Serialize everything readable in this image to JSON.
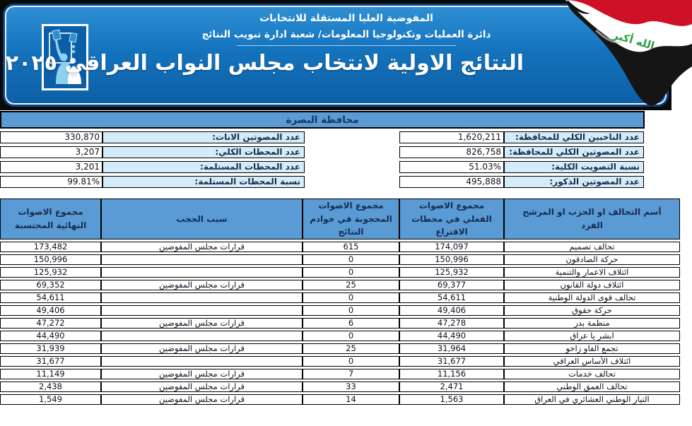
{
  "banner": {
    "org_line1": "المفوضية العليا المستقلة للانتخابات",
    "org_line2": "دائرة العمليات وتكنولوجيا المعلومات/ شعبة ادارة تبويب النتائج",
    "title": "النتائج الاولية لانتخاب مجلس النواب العراقي ٢٠٢٥",
    "flag_takbir": "الله أكبر"
  },
  "governorate": {
    "title": "محافظة البصرة"
  },
  "stats": {
    "right": [
      {
        "label": "عدد الناخبين الكلي للمحافظة:",
        "value": "1,620,211"
      },
      {
        "label": "عدد المصوتين الكلي للمحافظة:",
        "value": "826,758"
      },
      {
        "label": "نسبة التصويت الكلية:",
        "value": "51.03%"
      },
      {
        "label": "عدد المصوتين الذكور:",
        "value": "495,888"
      }
    ],
    "left": [
      {
        "label": "عدد المصوتين الاناث:",
        "value": "330,870"
      },
      {
        "label": "عدد المحطات الكلي:",
        "value": "3,207"
      },
      {
        "label": "عدد المحطات المستلمة:",
        "value": "3,201"
      },
      {
        "label": "نسبة المحطات المستلمة:",
        "value": "99.81%"
      }
    ]
  },
  "results_table": {
    "headers": [
      "أسم التحالف او الحزب او المرشح الفرد",
      "مجموع الاصوات الفعلي في محطات الاقتراع",
      "مجموع الاصوات المحجوبة في خوادم النتائج",
      "سبب الحجب",
      "مجموع الاصوات النهائية المحتسبة"
    ],
    "rows": [
      {
        "name": "تحالف تصميم",
        "actual": "174,097",
        "blocked": "615",
        "reason": "قرارات مجلس المفوضين",
        "final": "173,482"
      },
      {
        "name": "حركة الصادقون",
        "actual": "150,996",
        "blocked": "0",
        "reason": "",
        "final": "150,996"
      },
      {
        "name": "ائتلاف الاعمار والتنمية",
        "actual": "125,932",
        "blocked": "0",
        "reason": "",
        "final": "125,932"
      },
      {
        "name": "ائتلاف دولة القانون",
        "actual": "69,377",
        "blocked": "25",
        "reason": "قرارات مجلس المفوضين",
        "final": "69,352"
      },
      {
        "name": "تحالف قوى الدولة الوطنية",
        "actual": "54,611",
        "blocked": "0",
        "reason": "",
        "final": "54,611"
      },
      {
        "name": "حركة حقوق",
        "actual": "49,406",
        "blocked": "0",
        "reason": "",
        "final": "49,406"
      },
      {
        "name": "منظمة بدر",
        "actual": "47,278",
        "blocked": "6",
        "reason": "قرارات مجلس المفوضين",
        "final": "47,272"
      },
      {
        "name": "ابشر يا عراق",
        "actual": "44,490",
        "blocked": "0",
        "reason": "",
        "final": "44,490"
      },
      {
        "name": "تجمع الفاو زاخو",
        "actual": "31,964",
        "blocked": "25",
        "reason": "قرارات مجلس المفوضين",
        "final": "31,939"
      },
      {
        "name": "ائتلاف الأساس العراقي",
        "actual": "31,677",
        "blocked": "0",
        "reason": "",
        "final": "31,677"
      },
      {
        "name": "تحالف خدمات",
        "actual": "11,156",
        "blocked": "7",
        "reason": "قرارات مجلس المفوضين",
        "final": "11,149"
      },
      {
        "name": "تحالف العمق الوطني",
        "actual": "2,471",
        "blocked": "33",
        "reason": "قرارات مجلس المفوضين",
        "final": "2,438"
      },
      {
        "name": "التيار الوطني العشائري في العراق",
        "actual": "1,563",
        "blocked": "14",
        "reason": "قرارات مجلس المفوضين",
        "final": "1,549"
      }
    ]
  },
  "colors": {
    "banner_blue": "#1473bd",
    "banner_border_navy": "#10407f",
    "frame_black": "#0a0a0a",
    "table_header_blue": "#5b9bd5",
    "label_cell_blue": "#d3ecf8",
    "text_navy": "#17365d",
    "flag_red": "#ce1126",
    "flag_white": "#ffffff",
    "flag_black": "#151515",
    "flag_green": "#2f9e41"
  }
}
